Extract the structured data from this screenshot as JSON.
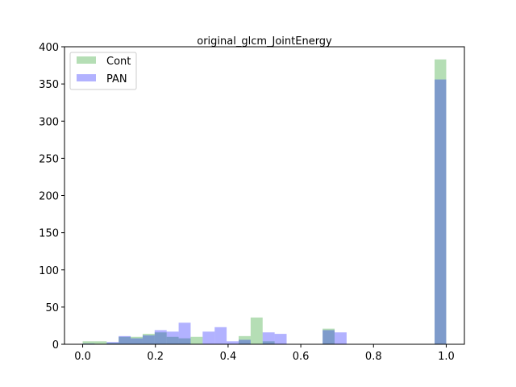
{
  "chart_data": {
    "type": "bar",
    "title": "original_glcm_JointEnergy",
    "xlabel": "",
    "ylabel": "",
    "xlim": [
      -0.05,
      1.05
    ],
    "ylim": [
      0,
      400
    ],
    "xticks": [
      "0.0",
      "0.2",
      "0.4",
      "0.6",
      "0.8",
      "1.0"
    ],
    "yticks": [
      "0",
      "50",
      "100",
      "150",
      "200",
      "250",
      "300",
      "350",
      "400"
    ],
    "grid": false,
    "legend_position": "top-left",
    "series": [
      {
        "name": "Cont",
        "color": "#2ca02c",
        "alpha": 0.35,
        "bins": [
          [
            0.0,
            0.033,
            4
          ],
          [
            0.033,
            0.066,
            4
          ],
          [
            0.066,
            0.099,
            2
          ],
          [
            0.099,
            0.132,
            10
          ],
          [
            0.132,
            0.165,
            10
          ],
          [
            0.165,
            0.198,
            14
          ],
          [
            0.198,
            0.231,
            16
          ],
          [
            0.231,
            0.264,
            10
          ],
          [
            0.264,
            0.297,
            8
          ],
          [
            0.297,
            0.33,
            10
          ],
          [
            0.429,
            0.462,
            11
          ],
          [
            0.462,
            0.495,
            36
          ],
          [
            0.495,
            0.528,
            4
          ],
          [
            0.66,
            0.693,
            21
          ],
          [
            0.968,
            1.0,
            383
          ]
        ]
      },
      {
        "name": "PAN",
        "color": "#0000ff",
        "alpha": 0.3,
        "bins": [
          [
            0.0,
            0.033,
            1
          ],
          [
            0.066,
            0.099,
            3
          ],
          [
            0.099,
            0.132,
            11
          ],
          [
            0.132,
            0.165,
            8
          ],
          [
            0.165,
            0.198,
            12
          ],
          [
            0.198,
            0.231,
            19
          ],
          [
            0.231,
            0.264,
            17
          ],
          [
            0.264,
            0.297,
            29
          ],
          [
            0.33,
            0.363,
            17
          ],
          [
            0.363,
            0.396,
            23
          ],
          [
            0.396,
            0.429,
            4
          ],
          [
            0.429,
            0.462,
            6
          ],
          [
            0.495,
            0.528,
            16
          ],
          [
            0.528,
            0.561,
            14
          ],
          [
            0.66,
            0.693,
            19
          ],
          [
            0.693,
            0.726,
            16
          ],
          [
            0.968,
            1.0,
            356
          ]
        ]
      }
    ]
  }
}
